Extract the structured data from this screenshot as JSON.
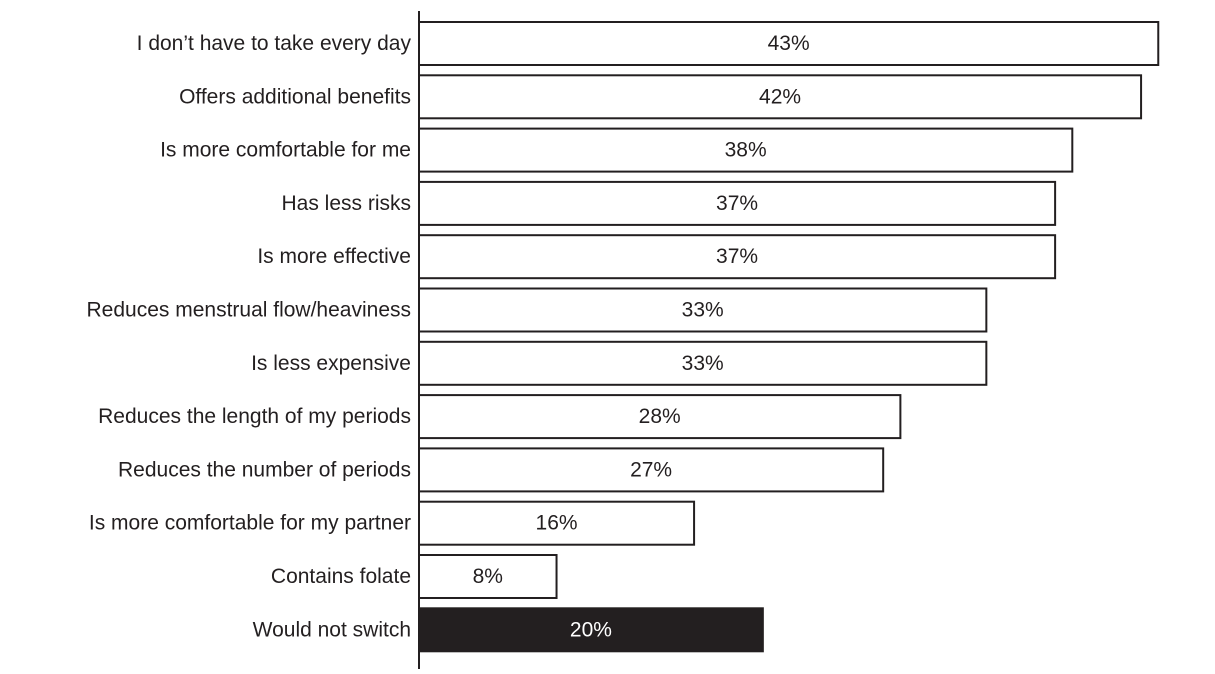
{
  "chart_data": {
    "type": "bar",
    "orientation": "horizontal",
    "categories": [
      "I don’t have to take every day",
      "Offers additional benefits",
      "Is more comfortable for me",
      "Has less risks",
      "Is more effective",
      "Reduces menstrual flow/heaviness",
      "Is less expensive",
      "Reduces the length of my periods",
      "Reduces the number of periods",
      "Is more comfortable for my partner",
      "Contains folate",
      "Would not switch"
    ],
    "values": [
      43,
      42,
      38,
      37,
      37,
      33,
      33,
      28,
      27,
      16,
      8,
      20
    ],
    "labels": [
      "43%",
      "42%",
      "38%",
      "37%",
      "37%",
      "33%",
      "33%",
      "28%",
      "27%",
      "16%",
      "8%",
      "20%"
    ],
    "unit": "%",
    "highlighted": [
      "Would not switch"
    ],
    "colors": {
      "bar_fill": "#ffffff",
      "bar_stroke": "#231f20",
      "highlight_fill": "#231f20",
      "highlight_text": "#ffffff",
      "text": "#231f20"
    },
    "xlim": [
      0,
      46.3
    ],
    "grid": false,
    "legend": "none"
  }
}
